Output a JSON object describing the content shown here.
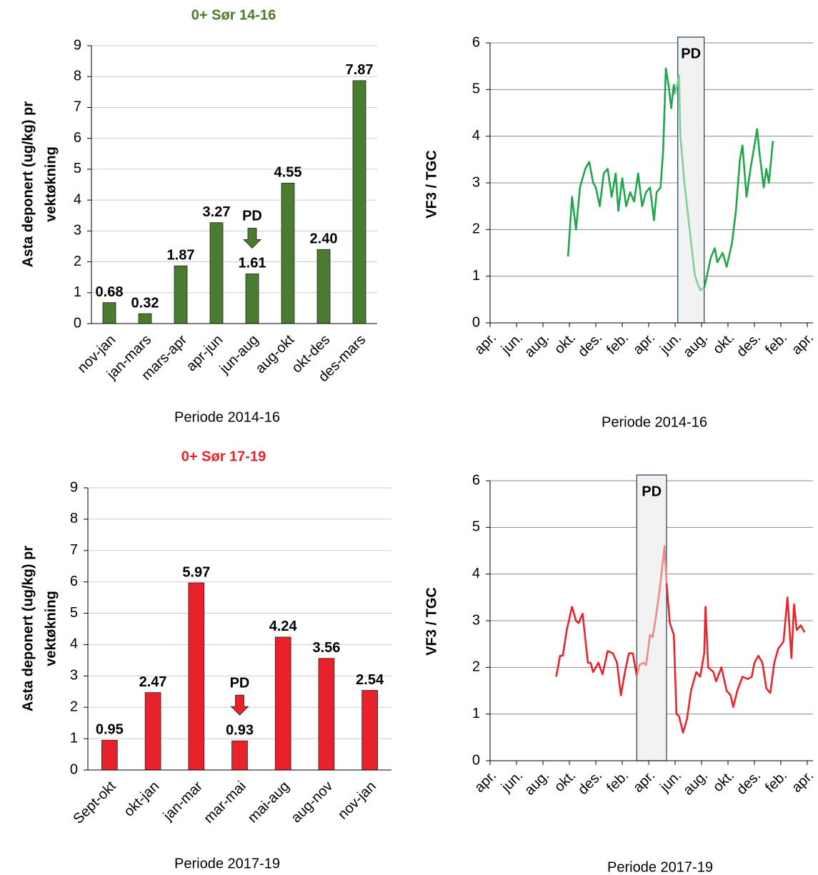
{
  "chart_data": [
    {
      "type": "bar",
      "title": "0+ Sør 14-16",
      "color": "#4a7c2f",
      "categories": [
        "nov-jan",
        "jan-mars",
        "mars-apr",
        "apr-jun",
        "jun-aug",
        "aug-okt",
        "okt-des",
        "des-mars"
      ],
      "values": [
        0.68,
        0.32,
        1.87,
        3.27,
        1.61,
        4.55,
        2.4,
        7.87
      ],
      "value_labels": [
        "0.68",
        "0.32",
        "1.87",
        "3.27",
        "1.61",
        "4.55",
        "2.40",
        "7.87"
      ],
      "ylim": [
        0,
        9
      ],
      "yticks": [
        0,
        1,
        2,
        3,
        4,
        5,
        6,
        7,
        8,
        9
      ],
      "grid": true,
      "y_label": [
        "Asta deponert (ug/kg) pr",
        "vektøkning"
      ],
      "x_label": "Periode 2014-16",
      "annotation": {
        "text": "PD",
        "category": 4
      }
    },
    {
      "type": "line",
      "y_label": "VF3 / TGC",
      "x_label": "Periode 2014-16",
      "xlim": [
        0,
        24
      ],
      "ylim": [
        0,
        6
      ],
      "yticks": [
        0,
        1,
        2,
        3,
        4,
        5,
        6
      ],
      "grid": true,
      "xticks": [
        {
          "value": 0,
          "label": "apr."
        },
        {
          "value": 2,
          "label": "jun."
        },
        {
          "value": 4,
          "label": "aug."
        },
        {
          "value": 6,
          "label": "okt."
        },
        {
          "value": 8,
          "label": "des."
        },
        {
          "value": 10,
          "label": "feb."
        },
        {
          "value": 12,
          "label": "apr."
        },
        {
          "value": 14,
          "label": "jun."
        },
        {
          "value": 16,
          "label": "aug."
        },
        {
          "value": 18,
          "label": "okt."
        },
        {
          "value": 20,
          "label": "des."
        },
        {
          "value": 22,
          "label": "feb."
        },
        {
          "value": 24,
          "label": "apr."
        }
      ],
      "highlight": {
        "text": "PD",
        "xlim": [
          14.2,
          16.2
        ]
      },
      "series": [
        {
          "color": "#1fa64a",
          "x": [
            5.9,
            6.2,
            6.5,
            6.8,
            7.2,
            7.5,
            7.8,
            8.0,
            8.3,
            8.6,
            8.9,
            9.2,
            9.5,
            9.7,
            10.0,
            10.3,
            10.6,
            10.9,
            11.2,
            11.5,
            11.8,
            12.1,
            12.4,
            12.6,
            12.9,
            13.1,
            13.2,
            13.3,
            13.5,
            13.7,
            13.9,
            14.0
          ],
          "values": [
            1.42,
            2.7,
            2.0,
            2.9,
            3.3,
            3.45,
            3.0,
            2.9,
            2.5,
            3.2,
            3.3,
            2.7,
            3.2,
            2.4,
            3.1,
            2.5,
            2.8,
            2.6,
            3.2,
            2.5,
            2.8,
            2.9,
            2.2,
            2.8,
            2.9,
            3.7,
            4.6,
            5.45,
            5.1,
            4.6,
            5.1,
            4.9
          ]
        },
        {
          "color": "#80d09e",
          "x": [
            14.0,
            14.3,
            14.4,
            14.7,
            15.1,
            15.5,
            15.9,
            16.2
          ],
          "values": [
            4.9,
            5.3,
            4.0,
            3.0,
            2.0,
            1.0,
            0.7,
            0.75
          ]
        },
        {
          "color": "#1fa64a",
          "x": [
            16.2,
            16.4,
            16.7,
            17.0,
            17.2,
            17.6,
            17.9,
            18.3,
            18.6,
            18.9,
            19.1,
            19.4,
            19.7,
            20.0,
            20.2,
            20.4,
            20.7,
            20.9,
            21.1,
            21.4
          ],
          "values": [
            0.75,
            1.0,
            1.4,
            1.6,
            1.3,
            1.5,
            1.2,
            1.7,
            2.4,
            3.5,
            3.8,
            2.7,
            3.3,
            3.8,
            4.15,
            3.6,
            2.9,
            3.3,
            3.0,
            3.9
          ]
        }
      ]
    },
    {
      "type": "bar",
      "title": "0+ Sør 17-19",
      "color": "#e8212b",
      "categories": [
        "Sept-okt",
        "okt-jan",
        "jan-mar",
        "mar-mai",
        "mai-aug",
        "aug-nov",
        "nov-jan"
      ],
      "values": [
        0.95,
        2.47,
        5.97,
        0.93,
        4.24,
        3.56,
        2.54
      ],
      "ylim": [
        0,
        9
      ],
      "yticks": [
        0,
        1,
        2,
        3,
        4,
        5,
        6,
        7,
        8,
        9
      ],
      "grid": true,
      "y_label": [
        "Asta deponert (ug/kg) pr",
        "vektøkning"
      ],
      "x_label": "Periode 2017-19",
      "annotation": {
        "text": "PD",
        "category": 3
      }
    },
    {
      "type": "line",
      "y_label": "VF3 / TGC",
      "x_label": "Periode 2017-19",
      "xlim": [
        0,
        24
      ],
      "ylim": [
        0,
        6
      ],
      "yticks": [
        0,
        1,
        2,
        3,
        4,
        5,
        6
      ],
      "grid": true,
      "xticks": [
        {
          "value": 0,
          "label": "apr."
        },
        {
          "value": 2,
          "label": "jun."
        },
        {
          "value": 4,
          "label": "aug."
        },
        {
          "value": 6,
          "label": "okt."
        },
        {
          "value": 8,
          "label": "des."
        },
        {
          "value": 10,
          "label": "feb."
        },
        {
          "value": 12,
          "label": "apr."
        },
        {
          "value": 14,
          "label": "jun."
        },
        {
          "value": 16,
          "label": "aug."
        },
        {
          "value": 18,
          "label": "okt."
        },
        {
          "value": 20,
          "label": "des."
        },
        {
          "value": 22,
          "label": "feb."
        },
        {
          "value": 24,
          "label": "apr."
        }
      ],
      "highlight": {
        "text": "PD",
        "xlim": [
          11.1,
          13.35
        ]
      },
      "series": [
        {
          "color": "#e8242b",
          "x": [
            5.0,
            5.3,
            5.5,
            5.8,
            6.2,
            6.5,
            6.7,
            7.0,
            7.4,
            7.6,
            7.8,
            8.2,
            8.5,
            8.9,
            9.3,
            9.6,
            9.9,
            10.2,
            10.5,
            10.8,
            11.1
          ],
          "values": [
            1.8,
            2.25,
            2.25,
            2.8,
            3.3,
            3.0,
            2.95,
            3.15,
            2.1,
            2.1,
            1.9,
            2.1,
            1.85,
            2.35,
            2.3,
            2.1,
            1.4,
            1.9,
            2.3,
            2.3,
            1.8
          ]
        },
        {
          "color": "#f08a8a",
          "x": [
            11.1,
            11.3,
            11.6,
            11.8,
            12.1,
            12.3,
            12.5,
            12.8,
            13.2,
            13.35
          ],
          "values": [
            1.8,
            2.05,
            2.1,
            2.05,
            2.7,
            2.65,
            3.0,
            3.6,
            4.6,
            3.8
          ]
        },
        {
          "color": "#e8242b",
          "x": [
            13.35,
            13.6,
            13.9,
            14.1,
            14.3,
            14.6,
            14.9,
            15.2,
            15.6,
            15.9,
            16.2,
            16.3,
            16.5,
            16.9,
            17.1,
            17.5,
            17.9,
            18.2,
            18.4,
            18.7,
            19.1,
            19.5,
            19.8,
            20.0,
            20.3,
            20.6,
            20.9,
            21.2,
            21.5,
            21.8,
            22.2,
            22.5,
            22.8,
            23.0,
            23.2,
            23.5,
            23.8
          ],
          "values": [
            3.8,
            2.95,
            2.7,
            1.0,
            0.95,
            0.6,
            0.9,
            1.5,
            1.9,
            1.8,
            2.3,
            3.3,
            2.0,
            1.9,
            1.7,
            2.0,
            1.5,
            1.4,
            1.15,
            1.5,
            1.8,
            1.75,
            1.8,
            2.1,
            2.25,
            2.1,
            1.55,
            1.45,
            2.1,
            2.4,
            2.55,
            3.5,
            2.2,
            3.35,
            2.8,
            2.9,
            2.75
          ]
        }
      ]
    }
  ]
}
